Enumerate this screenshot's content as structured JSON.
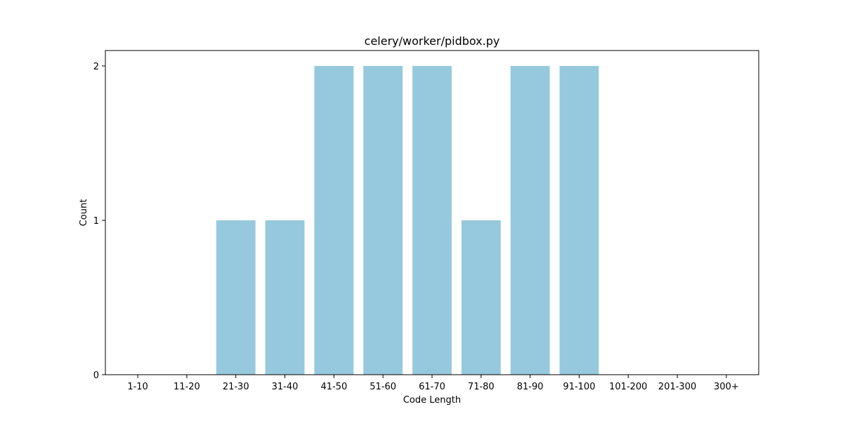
{
  "chart_data": {
    "type": "bar",
    "title": "celery/worker/pidbox.py",
    "xlabel": "Code Length",
    "ylabel": "Count",
    "categories": [
      "1-10",
      "11-20",
      "21-30",
      "31-40",
      "41-50",
      "51-60",
      "61-70",
      "71-80",
      "81-90",
      "91-100",
      "101-200",
      "201-300",
      "300+"
    ],
    "values": [
      0,
      0,
      1,
      1,
      2,
      2,
      2,
      1,
      2,
      2,
      0,
      0,
      0
    ],
    "ylim": [
      0,
      2.1
    ],
    "yticks": [
      0,
      1,
      2
    ],
    "grid": false,
    "legend": "none",
    "bar_color": "#96c9dd"
  }
}
